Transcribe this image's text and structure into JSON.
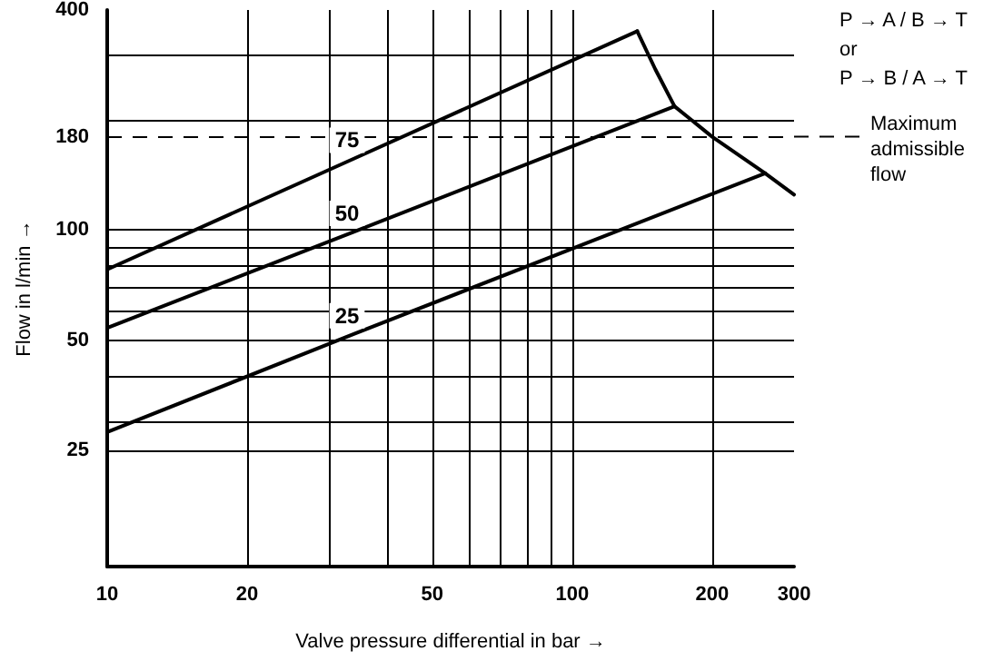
{
  "chart_data": {
    "type": "line",
    "xlabel": "Valve pressure differential in bar →",
    "ylabel": "Flow in l/min →",
    "log": "xy",
    "xlim": [
      10,
      300
    ],
    "ylim": [
      12,
      400
    ],
    "xticks": [
      10,
      20,
      {
        "value": 30,
        "label": null
      },
      {
        "value": 40,
        "label": null
      },
      50,
      {
        "value": 60,
        "label": null
      },
      {
        "value": 70,
        "label": null
      },
      {
        "value": 80,
        "label": null
      },
      {
        "value": 90,
        "label": null
      },
      100,
      200,
      300
    ],
    "yticks": [
      25,
      {
        "value": 30,
        "label": null
      },
      {
        "value": 40,
        "label": null
      },
      50,
      {
        "value": 60,
        "label": null
      },
      {
        "value": 70,
        "label": null
      },
      {
        "value": 80,
        "label": null
      },
      {
        "value": 90,
        "label": null
      },
      100,
      180,
      {
        "value": 200,
        "label": null
      },
      {
        "value": 300,
        "label": null
      },
      400
    ],
    "grid": true,
    "legend": false,
    "marker": "none",
    "line_style": "solid",
    "series": [
      {
        "name": "75",
        "color": "#000000",
        "x": [
          10,
          34,
          138
        ],
        "values": [
          78,
          157,
          350
        ]
      },
      {
        "name": "50",
        "color": "#000000",
        "x": [
          10,
          34,
          166
        ],
        "values": [
          54,
          99,
          218
        ]
      },
      {
        "name": "25",
        "color": "#000000",
        "x": [
          10,
          34,
          260
        ],
        "values": [
          28,
          52,
          143
        ]
      },
      {
        "color": "#000000",
        "x": [
          138,
          151,
          166,
          200,
          260,
          300
        ],
        "values": [
          350,
          275,
          218,
          180,
          143,
          125
        ]
      }
    ],
    "ref_lines": [
      {
        "axis": "y",
        "value": 180,
        "label": "Maximum admissible flow",
        "line_style": "dashed",
        "color": "#000000"
      }
    ],
    "annotations": [
      "P → A / B → T",
      "or",
      "P → B / A → T"
    ]
  }
}
